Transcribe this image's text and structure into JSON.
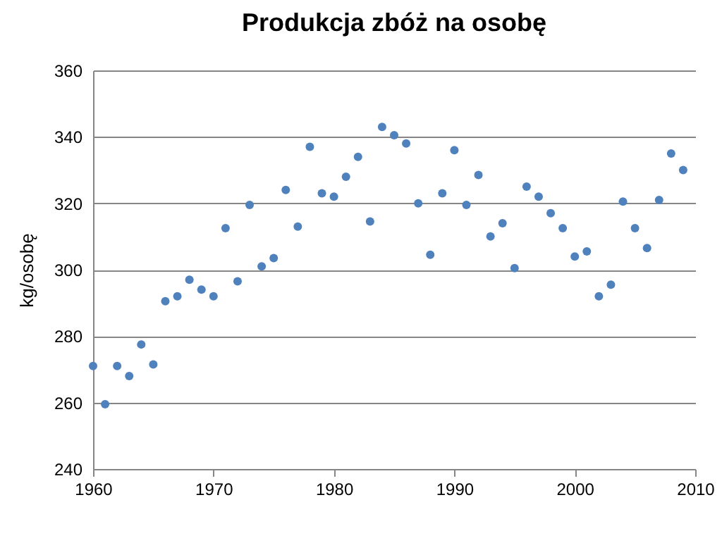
{
  "chart_data": {
    "type": "scatter",
    "title": "Produkcja zbóż na osobę",
    "ylabel": "kg/osobę",
    "x": [
      1960,
      1961,
      1962,
      1963,
      1964,
      1965,
      1966,
      1967,
      1968,
      1969,
      1970,
      1971,
      1972,
      1973,
      1974,
      1975,
      1976,
      1977,
      1978,
      1979,
      1980,
      1981,
      1982,
      1983,
      1984,
      1985,
      1986,
      1987,
      1988,
      1989,
      1990,
      1991,
      1992,
      1993,
      1994,
      1995,
      1996,
      1997,
      1998,
      1999,
      2000,
      2001,
      2002,
      2003,
      2004,
      2005,
      2006,
      2007,
      2008,
      2009
    ],
    "series": [
      {
        "color": "#4f81bd",
        "values": [
          271,
          259.5,
          271,
          268,
          277.5,
          271.5,
          290.5,
          292,
          297,
          294,
          292,
          312.5,
          296.5,
          319.5,
          301,
          303.5,
          324,
          313,
          337,
          323,
          322,
          328,
          334,
          314.5,
          343,
          340.5,
          338,
          320,
          304.5,
          323,
          336,
          319.5,
          328.5,
          310,
          314,
          300.5,
          325,
          322,
          317,
          312.5,
          304,
          305.5,
          292,
          295.5,
          320.5,
          312.5,
          306.5,
          321,
          335,
          330
        ]
      }
    ],
    "xlim": [
      1960,
      2010
    ],
    "xticks": [
      1960,
      1970,
      1980,
      1990,
      2000,
      2010
    ],
    "ylim": [
      240,
      360
    ],
    "yticks": [
      240,
      260,
      280,
      300,
      320,
      340,
      360
    ],
    "grid": "y",
    "marker": "circle",
    "legend": false
  }
}
